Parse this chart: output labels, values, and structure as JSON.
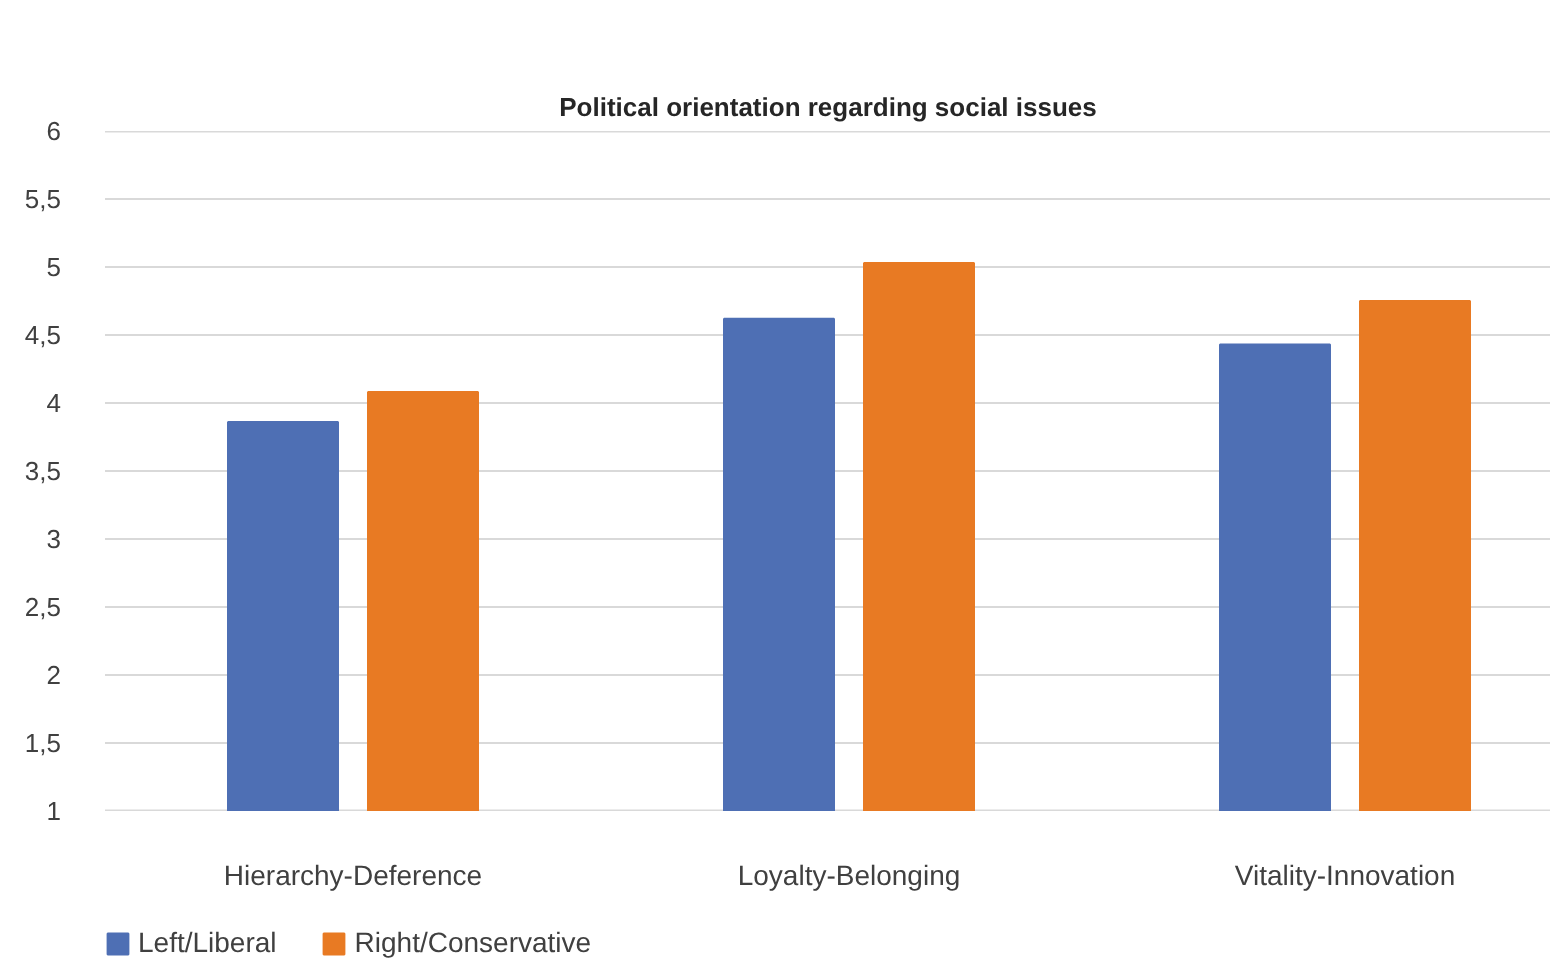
{
  "chart_data": {
    "type": "bar",
    "title": "Political orientation regarding social issues",
    "categories": [
      "Hierarchy-Deference",
      "Loyalty-Belonging",
      "Vitality-Innovation"
    ],
    "series": [
      {
        "name": "Left/Liberal",
        "color": "#4e6fb4",
        "values": [
          3.86,
          4.62,
          4.43
        ]
      },
      {
        "name": "Right/Conservative",
        "color": "#e87a23",
        "values": [
          4.08,
          5.03,
          4.75
        ]
      }
    ],
    "ylim": [
      1,
      6
    ],
    "yticks": [
      1,
      {
        "value": 1.5,
        "label": "1,5"
      },
      2,
      {
        "value": 2.5,
        "label": "2,5"
      },
      3,
      {
        "value": 3.5,
        "label": "3,5"
      },
      4,
      {
        "value": 4.5,
        "label": "4,5"
      },
      5,
      {
        "value": 5.5,
        "label": "5,5"
      },
      6
    ],
    "grid": "y",
    "legend": "bottom left"
  }
}
